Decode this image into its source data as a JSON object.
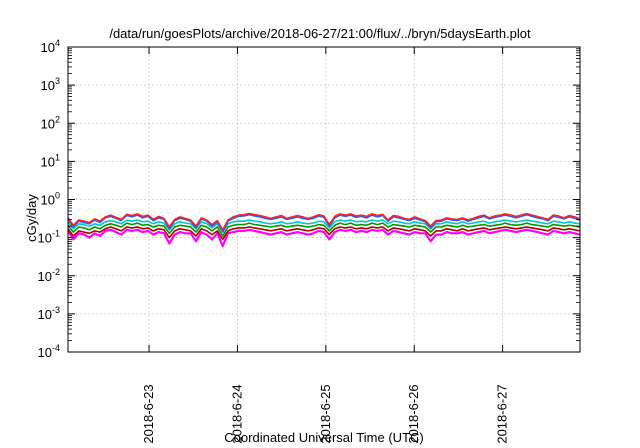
{
  "chart_data": {
    "type": "line",
    "title": "/data/run/goesPlots/archive/2018-06-27/21:00/flux/../bryn/5daysEarth.plot",
    "xlabel": "Coordinated Universal Time (UTC)",
    "ylabel": "cGy/day",
    "yscale": "log",
    "ylim": [
      0.0001,
      10000
    ],
    "y_ticks": [
      {
        "mant": "10",
        "exp": "-4"
      },
      {
        "mant": "10",
        "exp": "-3"
      },
      {
        "mant": "10",
        "exp": "-2"
      },
      {
        "mant": "10",
        "exp": "-1"
      },
      {
        "mant": "10",
        "exp": "0"
      },
      {
        "mant": "10",
        "exp": "1"
      },
      {
        "mant": "10",
        "exp": "2"
      },
      {
        "mant": "10",
        "exp": "3"
      },
      {
        "mant": "10",
        "exp": "4"
      }
    ],
    "xlim": [
      "2018-06-22T02:00",
      "2018-06-27T21:00"
    ],
    "x_ticks": [
      "2018-6-23",
      "2018-6-24",
      "2018-6-25",
      "2018-6-26",
      "2018-6-27"
    ],
    "grid": true,
    "series": [
      {
        "color": "#ff00ff",
        "values": [
          0.15,
          0.09,
          0.13,
          0.12,
          0.1,
          0.13,
          0.11,
          0.15,
          0.16,
          0.14,
          0.12,
          0.16,
          0.15,
          0.16,
          0.14,
          0.15,
          0.12,
          0.14,
          0.13,
          0.07,
          0.12,
          0.14,
          0.13,
          0.13,
          0.08,
          0.14,
          0.12,
          0.09,
          0.13,
          0.06,
          0.13,
          0.14,
          0.15,
          0.15,
          0.16,
          0.15,
          0.14,
          0.13,
          0.12,
          0.13,
          0.14,
          0.12,
          0.13,
          0.14,
          0.13,
          0.12,
          0.13,
          0.15,
          0.14,
          0.09,
          0.14,
          0.16,
          0.15,
          0.16,
          0.14,
          0.15,
          0.14,
          0.16,
          0.15,
          0.16,
          0.12,
          0.15,
          0.14,
          0.13,
          0.12,
          0.14,
          0.13,
          0.13,
          0.08,
          0.12,
          0.12,
          0.14,
          0.13,
          0.13,
          0.14,
          0.12,
          0.13,
          0.14,
          0.15,
          0.13,
          0.14,
          0.15,
          0.16,
          0.15,
          0.14,
          0.15,
          0.16,
          0.15,
          0.14,
          0.13,
          0.12,
          0.15,
          0.14,
          0.13,
          0.14,
          0.13,
          0.12
        ]
      },
      {
        "color": "#b00000",
        "values": [
          0.17,
          0.11,
          0.15,
          0.14,
          0.13,
          0.15,
          0.14,
          0.17,
          0.19,
          0.17,
          0.15,
          0.19,
          0.18,
          0.19,
          0.17,
          0.18,
          0.15,
          0.17,
          0.16,
          0.1,
          0.15,
          0.17,
          0.16,
          0.15,
          0.11,
          0.17,
          0.15,
          0.12,
          0.15,
          0.09,
          0.15,
          0.17,
          0.18,
          0.18,
          0.19,
          0.18,
          0.17,
          0.16,
          0.15,
          0.16,
          0.17,
          0.15,
          0.16,
          0.17,
          0.16,
          0.15,
          0.16,
          0.18,
          0.17,
          0.12,
          0.17,
          0.19,
          0.18,
          0.19,
          0.17,
          0.18,
          0.17,
          0.19,
          0.18,
          0.19,
          0.15,
          0.18,
          0.17,
          0.16,
          0.15,
          0.17,
          0.16,
          0.15,
          0.11,
          0.15,
          0.15,
          0.17,
          0.16,
          0.15,
          0.17,
          0.15,
          0.16,
          0.17,
          0.18,
          0.16,
          0.17,
          0.18,
          0.19,
          0.18,
          0.17,
          0.18,
          0.19,
          0.18,
          0.17,
          0.16,
          0.15,
          0.18,
          0.17,
          0.16,
          0.17,
          0.16,
          0.15
        ]
      },
      {
        "color": "#009900",
        "values": [
          0.21,
          0.14,
          0.19,
          0.18,
          0.16,
          0.19,
          0.17,
          0.21,
          0.23,
          0.21,
          0.19,
          0.24,
          0.22,
          0.24,
          0.21,
          0.22,
          0.19,
          0.21,
          0.2,
          0.13,
          0.19,
          0.21,
          0.2,
          0.19,
          0.14,
          0.21,
          0.19,
          0.15,
          0.19,
          0.11,
          0.19,
          0.21,
          0.22,
          0.22,
          0.24,
          0.22,
          0.21,
          0.2,
          0.19,
          0.2,
          0.21,
          0.19,
          0.2,
          0.21,
          0.2,
          0.19,
          0.2,
          0.22,
          0.21,
          0.15,
          0.21,
          0.24,
          0.22,
          0.24,
          0.21,
          0.22,
          0.21,
          0.24,
          0.22,
          0.24,
          0.19,
          0.22,
          0.21,
          0.2,
          0.19,
          0.21,
          0.2,
          0.19,
          0.14,
          0.19,
          0.19,
          0.21,
          0.2,
          0.19,
          0.21,
          0.19,
          0.2,
          0.21,
          0.22,
          0.2,
          0.21,
          0.22,
          0.24,
          0.22,
          0.21,
          0.22,
          0.24,
          0.22,
          0.21,
          0.2,
          0.19,
          0.22,
          0.21,
          0.2,
          0.21,
          0.2,
          0.19
        ]
      },
      {
        "color": "#00c8c8",
        "values": [
          0.26,
          0.17,
          0.23,
          0.22,
          0.2,
          0.23,
          0.21,
          0.26,
          0.28,
          0.26,
          0.23,
          0.29,
          0.27,
          0.29,
          0.26,
          0.27,
          0.23,
          0.26,
          0.24,
          0.16,
          0.23,
          0.26,
          0.24,
          0.23,
          0.17,
          0.26,
          0.23,
          0.18,
          0.23,
          0.14,
          0.23,
          0.26,
          0.27,
          0.27,
          0.29,
          0.27,
          0.26,
          0.24,
          0.23,
          0.24,
          0.26,
          0.23,
          0.24,
          0.26,
          0.24,
          0.23,
          0.24,
          0.27,
          0.26,
          0.18,
          0.26,
          0.29,
          0.27,
          0.29,
          0.26,
          0.27,
          0.26,
          0.29,
          0.27,
          0.29,
          0.23,
          0.27,
          0.26,
          0.24,
          0.23,
          0.26,
          0.24,
          0.23,
          0.17,
          0.23,
          0.23,
          0.26,
          0.24,
          0.23,
          0.26,
          0.23,
          0.24,
          0.26,
          0.27,
          0.24,
          0.26,
          0.27,
          0.29,
          0.27,
          0.26,
          0.27,
          0.29,
          0.27,
          0.26,
          0.24,
          0.23,
          0.27,
          0.26,
          0.24,
          0.26,
          0.24,
          0.23
        ]
      },
      {
        "color": "#2060ff",
        "values": [
          0.31,
          0.19,
          0.27,
          0.25,
          0.23,
          0.29,
          0.25,
          0.33,
          0.36,
          0.32,
          0.28,
          0.38,
          0.35,
          0.39,
          0.33,
          0.36,
          0.28,
          0.33,
          0.3,
          0.17,
          0.28,
          0.32,
          0.3,
          0.27,
          0.18,
          0.31,
          0.27,
          0.2,
          0.26,
          0.14,
          0.27,
          0.32,
          0.36,
          0.37,
          0.4,
          0.37,
          0.35,
          0.32,
          0.3,
          0.32,
          0.35,
          0.3,
          0.32,
          0.35,
          0.32,
          0.3,
          0.32,
          0.37,
          0.34,
          0.2,
          0.33,
          0.39,
          0.36,
          0.39,
          0.34,
          0.36,
          0.33,
          0.39,
          0.35,
          0.38,
          0.27,
          0.35,
          0.33,
          0.3,
          0.28,
          0.32,
          0.29,
          0.26,
          0.18,
          0.26,
          0.27,
          0.31,
          0.29,
          0.28,
          0.31,
          0.27,
          0.3,
          0.33,
          0.36,
          0.31,
          0.34,
          0.36,
          0.39,
          0.36,
          0.33,
          0.36,
          0.4,
          0.36,
          0.33,
          0.31,
          0.28,
          0.36,
          0.34,
          0.31,
          0.35,
          0.32,
          0.29
        ]
      },
      {
        "color": "#ff2020",
        "values": [
          0.33,
          0.21,
          0.29,
          0.27,
          0.25,
          0.31,
          0.27,
          0.35,
          0.39,
          0.34,
          0.3,
          0.41,
          0.38,
          0.42,
          0.36,
          0.39,
          0.3,
          0.36,
          0.32,
          0.19,
          0.3,
          0.35,
          0.32,
          0.29,
          0.2,
          0.33,
          0.29,
          0.22,
          0.28,
          0.16,
          0.29,
          0.35,
          0.39,
          0.4,
          0.43,
          0.4,
          0.38,
          0.35,
          0.32,
          0.35,
          0.38,
          0.32,
          0.35,
          0.38,
          0.35,
          0.32,
          0.35,
          0.4,
          0.37,
          0.22,
          0.36,
          0.42,
          0.39,
          0.42,
          0.37,
          0.39,
          0.36,
          0.42,
          0.38,
          0.41,
          0.29,
          0.38,
          0.36,
          0.32,
          0.3,
          0.35,
          0.31,
          0.28,
          0.2,
          0.28,
          0.29,
          0.33,
          0.31,
          0.3,
          0.33,
          0.29,
          0.32,
          0.36,
          0.39,
          0.33,
          0.37,
          0.39,
          0.42,
          0.39,
          0.36,
          0.39,
          0.43,
          0.39,
          0.36,
          0.33,
          0.3,
          0.39,
          0.37,
          0.33,
          0.38,
          0.35,
          0.31
        ]
      }
    ]
  }
}
